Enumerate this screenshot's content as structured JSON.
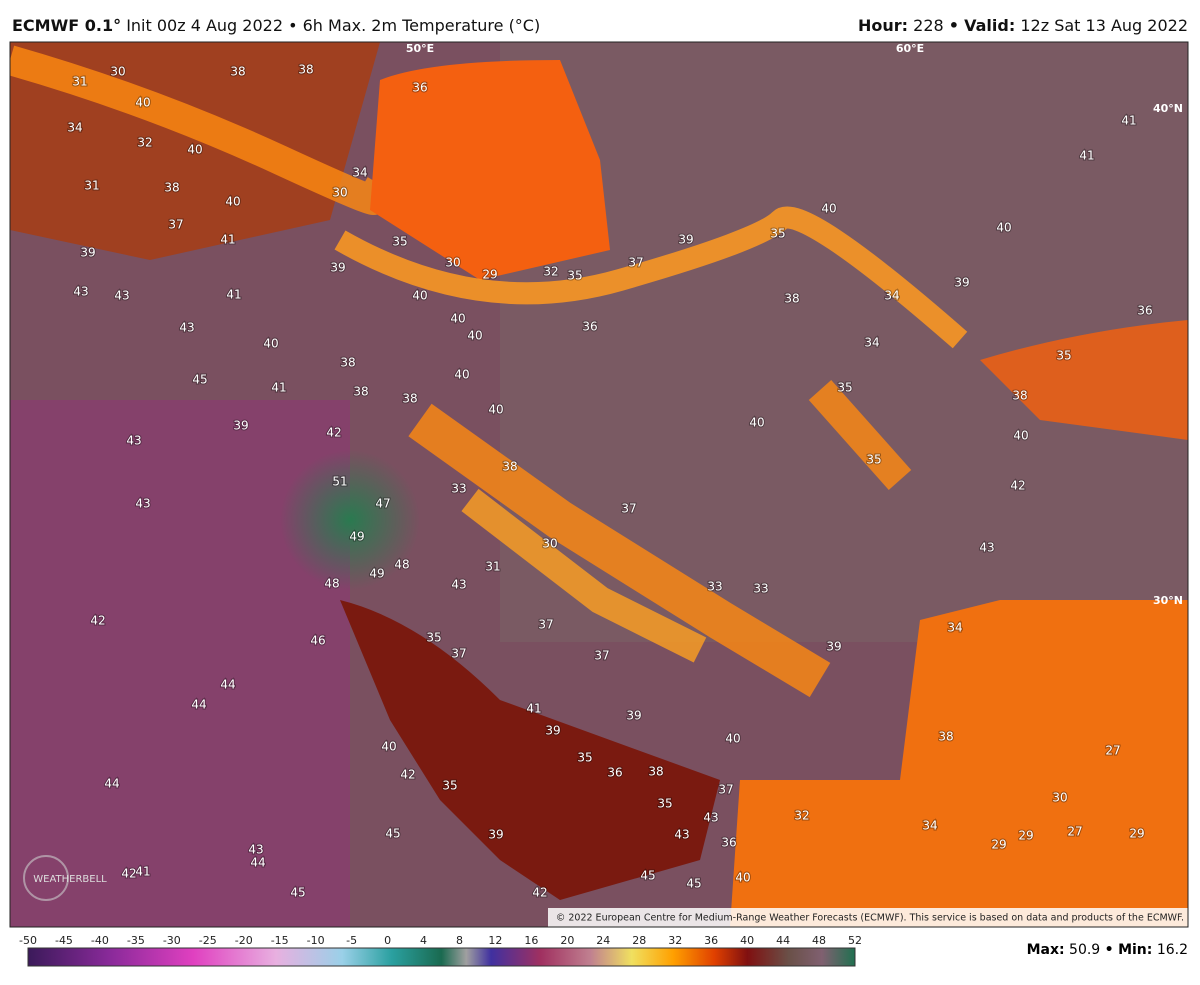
{
  "header": {
    "model": "ECMWF 0.1°",
    "description": "Init 00z 4 Aug 2022 • 6h Max. 2m Temperature (°C)",
    "hour_label": "Hour:",
    "hour": "228",
    "separator": "•",
    "valid_label": "Valid:",
    "valid": "12z Sat 13 Aug 2022"
  },
  "map": {
    "graticule": [
      "50°E",
      "60°E",
      "40°N",
      "30°N"
    ],
    "logo": "WEATHERBELL",
    "copyright": "© 2022 European Centre for Medium-Range Weather Forecasts (ECMWF). This service is based on data and products of the ECMWF.",
    "labels": [
      "31",
      "30",
      "38",
      "38",
      "36",
      "40",
      "34",
      "32",
      "40",
      "31",
      "38",
      "40",
      "30",
      "34",
      "37",
      "41",
      "39",
      "35",
      "39",
      "30",
      "29",
      "32",
      "35",
      "37",
      "39",
      "35",
      "40",
      "40",
      "41",
      "41",
      "43",
      "43",
      "41",
      "40",
      "40",
      "40",
      "36",
      "38",
      "34",
      "39",
      "36",
      "43",
      "40",
      "34",
      "35",
      "38",
      "45",
      "41",
      "38",
      "40",
      "38",
      "40",
      "35",
      "38",
      "39",
      "42",
      "43",
      "40",
      "40",
      "38",
      "35",
      "51",
      "33",
      "47",
      "43",
      "37",
      "42",
      "49",
      "30",
      "43",
      "31",
      "48",
      "49",
      "48",
      "43",
      "33",
      "33",
      "42",
      "37",
      "46",
      "35",
      "37",
      "37",
      "34",
      "39",
      "44",
      "44",
      "41",
      "39",
      "39",
      "40",
      "38",
      "27",
      "40",
      "35",
      "36",
      "38",
      "42",
      "44",
      "35",
      "37",
      "30",
      "35",
      "32",
      "43",
      "34",
      "45",
      "39",
      "43",
      "36",
      "29",
      "27",
      "29",
      "29",
      "43",
      "44",
      "42",
      "41",
      "45",
      "45",
      "40",
      "42",
      "45"
    ]
  },
  "colorbar": {
    "ticks": [
      "-50",
      "-45",
      "-40",
      "-35",
      "-30",
      "-25",
      "-20",
      "-15",
      "-10",
      "-5",
      "0",
      "4",
      "8",
      "12",
      "16",
      "20",
      "24",
      "28",
      "32",
      "36",
      "40",
      "44",
      "48",
      "52"
    ]
  },
  "footer": {
    "max_label": "Max:",
    "max": "50.9",
    "separator": "•",
    "min_label": "Min:",
    "min": "16.2"
  }
}
